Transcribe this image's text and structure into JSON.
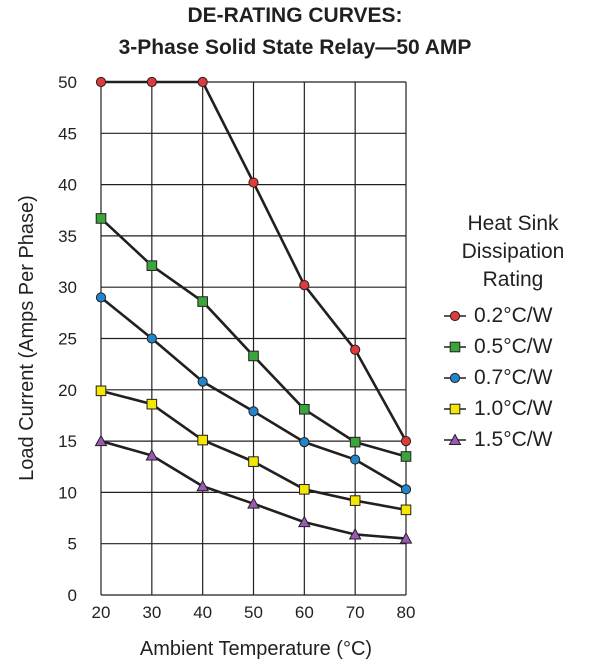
{
  "chart_data": {
    "type": "line",
    "title_line1": "DE-RATING CURVES:",
    "title_line2": "3-Phase Solid State Relay—50 AMP",
    "xlabel": "Ambient Temperature (°C)",
    "ylabel": "Load Current (Amps Per Phase)",
    "x": [
      20,
      30,
      40,
      50,
      60,
      70,
      80
    ],
    "xlim": [
      20,
      80
    ],
    "ylim": [
      0,
      50
    ],
    "x_ticks": [
      "20",
      "30",
      "40",
      "50",
      "60",
      "70",
      "80"
    ],
    "y_ticks": [
      "0",
      "5",
      "10",
      "15",
      "20",
      "25",
      "30",
      "35",
      "40",
      "45",
      "50"
    ],
    "grid": true,
    "legend_position": "right",
    "legend_title": [
      "Heat Sink",
      "Dissipation",
      "Rating"
    ],
    "series": [
      {
        "name": "0.2°C/W",
        "marker": "circle",
        "color": "#e03a3a",
        "values": [
          50,
          50,
          50,
          40.2,
          30.2,
          23.9,
          15
        ]
      },
      {
        "name": "0.5°C/W",
        "marker": "square",
        "color": "#3aa53a",
        "values": [
          36.7,
          32.1,
          28.6,
          23.3,
          18.1,
          14.9,
          13.5
        ]
      },
      {
        "name": "0.7°C/W",
        "marker": "circle",
        "color": "#1f86c9",
        "values": [
          29,
          25,
          20.8,
          17.9,
          14.9,
          13.2,
          10.3
        ]
      },
      {
        "name": "1.0°C/W",
        "marker": "square",
        "color": "#f5e800",
        "values": [
          19.9,
          18.6,
          15.1,
          13,
          10.3,
          9.2,
          8.3
        ]
      },
      {
        "name": "1.5°C/W",
        "marker": "triangle",
        "color": "#9b59b6",
        "values": [
          15,
          13.6,
          10.6,
          8.9,
          7.1,
          5.9,
          5.5
        ]
      }
    ]
  }
}
